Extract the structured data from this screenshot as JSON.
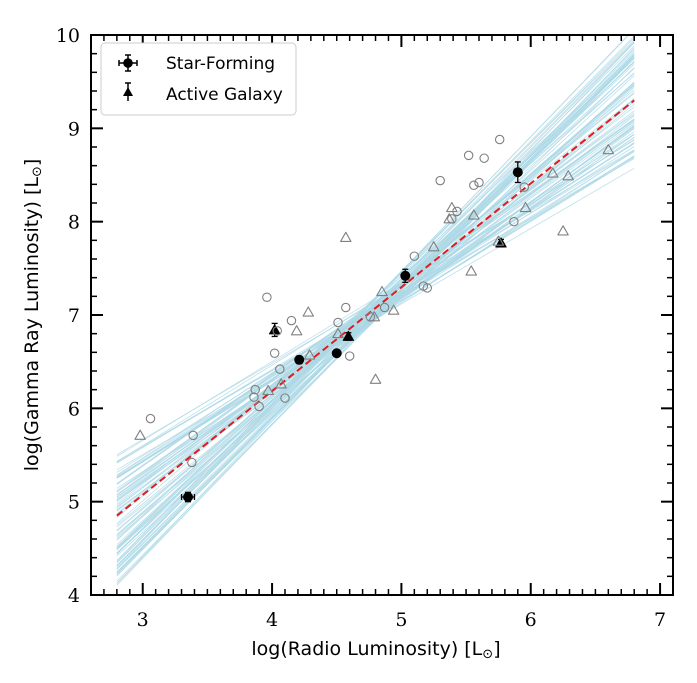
{
  "chart_data": {
    "type": "scatter",
    "title": "",
    "xlabel": "log(Radio Luminosity) [L",
    "ylabel": "log(Gamma Ray Luminosity) [L",
    "solar_symbol": "⊙",
    "label_close": "]",
    "xlim": [
      2.6,
      7.1
    ],
    "ylim": [
      4,
      10
    ],
    "x_ticks": [
      3,
      4,
      5,
      6,
      7
    ],
    "y_ticks": [
      4,
      5,
      6,
      7,
      8,
      9,
      10
    ],
    "x_tick_labels": [
      "3",
      "4",
      "5",
      "6",
      "7"
    ],
    "y_tick_labels": [
      "4",
      "5",
      "6",
      "7",
      "8",
      "9",
      "10"
    ],
    "legend": {
      "location": "top-left",
      "entries": [
        {
          "label": "Star-Forming",
          "marker": "circle"
        },
        {
          "label": "Active Galaxy",
          "marker": "triangle"
        }
      ]
    },
    "fit": {
      "line_style": "dashed",
      "color": "#e31a1c",
      "x_range": [
        2.8,
        6.8
      ],
      "y_range": [
        4.85,
        9.3
      ],
      "envelope_color": "#add8e6",
      "envelope_count": 90,
      "envelope_pivot": [
        4.8,
        7.07
      ],
      "envelope_slope_range": [
        0.8,
        1.45
      ],
      "envelope_intercept_spread": 0.25
    },
    "series": [
      {
        "name": "Star-Forming (detected)",
        "marker": "circle",
        "filled": true,
        "error_bars": true,
        "color": "#000000",
        "points": [
          {
            "x": 3.35,
            "y": 5.05,
            "xerr": 0.05,
            "yerr": 0.05
          },
          {
            "x": 4.21,
            "y": 6.52,
            "xerr": 0.0,
            "yerr": 0.04
          },
          {
            "x": 4.5,
            "y": 6.59,
            "xerr": 0.0,
            "yerr": 0.0
          },
          {
            "x": 5.03,
            "y": 7.42,
            "xerr": 0.0,
            "yerr": 0.07
          },
          {
            "x": 5.9,
            "y": 8.53,
            "xerr": 0.0,
            "yerr": 0.11
          }
        ]
      },
      {
        "name": "Active Galaxy (detected)",
        "marker": "triangle",
        "filled": true,
        "error_bars": true,
        "color": "#000000",
        "points": [
          {
            "x": 4.02,
            "y": 6.84,
            "xerr": 0.0,
            "yerr": 0.07
          },
          {
            "x": 4.59,
            "y": 6.77,
            "xerr": 0.0,
            "yerr": 0.04
          },
          {
            "x": 5.77,
            "y": 7.77,
            "xerr": 0.0,
            "yerr": 0.04
          }
        ]
      },
      {
        "name": "Star-Forming (sample)",
        "marker": "circle",
        "filled": false,
        "error_bars": false,
        "color": "#808080",
        "points": [
          {
            "x": 3.06,
            "y": 5.89
          },
          {
            "x": 3.38,
            "y": 5.42
          },
          {
            "x": 3.39,
            "y": 5.71
          },
          {
            "x": 3.86,
            "y": 6.12
          },
          {
            "x": 3.87,
            "y": 6.2
          },
          {
            "x": 3.9,
            "y": 6.02
          },
          {
            "x": 3.96,
            "y": 7.19
          },
          {
            "x": 4.02,
            "y": 6.59
          },
          {
            "x": 4.04,
            "y": 6.83
          },
          {
            "x": 4.06,
            "y": 6.42
          },
          {
            "x": 4.1,
            "y": 6.11
          },
          {
            "x": 4.15,
            "y": 6.94
          },
          {
            "x": 4.51,
            "y": 6.92
          },
          {
            "x": 4.57,
            "y": 7.08
          },
          {
            "x": 4.6,
            "y": 6.56
          },
          {
            "x": 4.76,
            "y": 6.98
          },
          {
            "x": 4.87,
            "y": 7.08
          },
          {
            "x": 5.1,
            "y": 7.63
          },
          {
            "x": 5.17,
            "y": 7.31
          },
          {
            "x": 5.2,
            "y": 7.29
          },
          {
            "x": 5.3,
            "y": 8.44
          },
          {
            "x": 5.39,
            "y": 8.03
          },
          {
            "x": 5.43,
            "y": 8.11
          },
          {
            "x": 5.52,
            "y": 8.71
          },
          {
            "x": 5.56,
            "y": 8.39
          },
          {
            "x": 5.6,
            "y": 8.42
          },
          {
            "x": 5.64,
            "y": 8.68
          },
          {
            "x": 5.76,
            "y": 8.88
          },
          {
            "x": 5.87,
            "y": 8.0
          },
          {
            "x": 5.95,
            "y": 8.37
          }
        ]
      },
      {
        "name": "Active Galaxy (sample)",
        "marker": "triangle",
        "filled": false,
        "error_bars": false,
        "color": "#808080",
        "points": [
          {
            "x": 2.98,
            "y": 5.71
          },
          {
            "x": 3.97,
            "y": 6.19
          },
          {
            "x": 4.07,
            "y": 6.26
          },
          {
            "x": 4.19,
            "y": 6.83
          },
          {
            "x": 4.28,
            "y": 7.03
          },
          {
            "x": 4.29,
            "y": 6.57
          },
          {
            "x": 4.51,
            "y": 6.8
          },
          {
            "x": 4.57,
            "y": 7.83
          },
          {
            "x": 4.79,
            "y": 6.98
          },
          {
            "x": 4.8,
            "y": 6.31
          },
          {
            "x": 4.85,
            "y": 7.25
          },
          {
            "x": 4.94,
            "y": 7.05
          },
          {
            "x": 5.25,
            "y": 7.73
          },
          {
            "x": 5.37,
            "y": 8.03
          },
          {
            "x": 5.39,
            "y": 8.15
          },
          {
            "x": 5.54,
            "y": 7.47
          },
          {
            "x": 5.56,
            "y": 8.07
          },
          {
            "x": 5.75,
            "y": 7.79
          },
          {
            "x": 5.96,
            "y": 8.15
          },
          {
            "x": 6.17,
            "y": 8.52
          },
          {
            "x": 6.25,
            "y": 7.9
          },
          {
            "x": 6.29,
            "y": 8.49
          },
          {
            "x": 6.6,
            "y": 8.77
          }
        ]
      }
    ]
  }
}
